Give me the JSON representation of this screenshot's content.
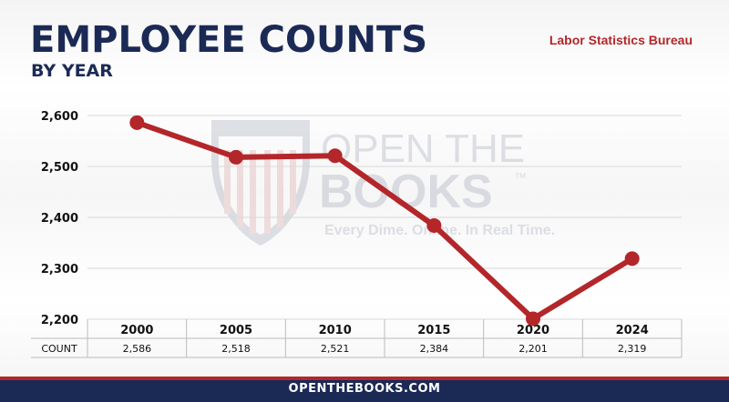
{
  "header": {
    "title": "EMPLOYEE COUNTS",
    "subtitle": "BY YEAR",
    "source": "Labor Statistics Bureau"
  },
  "watermark": {
    "line1": "OPEN THE",
    "line2": "BOOKS",
    "trademark": "™",
    "tagline": "Every Dime. Online. In Real Time."
  },
  "footer": {
    "url": "OPENTHEBOOKS.COM"
  },
  "colors": {
    "line": "#b3262a",
    "navy": "#1b2a55",
    "grid": "#d9d9d9"
  },
  "chart_data": {
    "type": "line",
    "title": "EMPLOYEE COUNTS",
    "subtitle": "BY YEAR",
    "categories": [
      "2000",
      "2005",
      "2010",
      "2015",
      "2020",
      "2024"
    ],
    "series": [
      {
        "values": [
          2586,
          2518,
          2521,
          2384,
          2201,
          2319
        ]
      }
    ],
    "value_labels": [
      "2,586",
      "2,518",
      "2,521",
      "2,384",
      "2,201",
      "2,319"
    ],
    "yticks": [
      "2,200",
      "2,300",
      "2,400",
      "2,500",
      "2,600"
    ],
    "ylim": [
      2200,
      2600
    ],
    "grid": true,
    "table_row_label": "COUNT"
  }
}
